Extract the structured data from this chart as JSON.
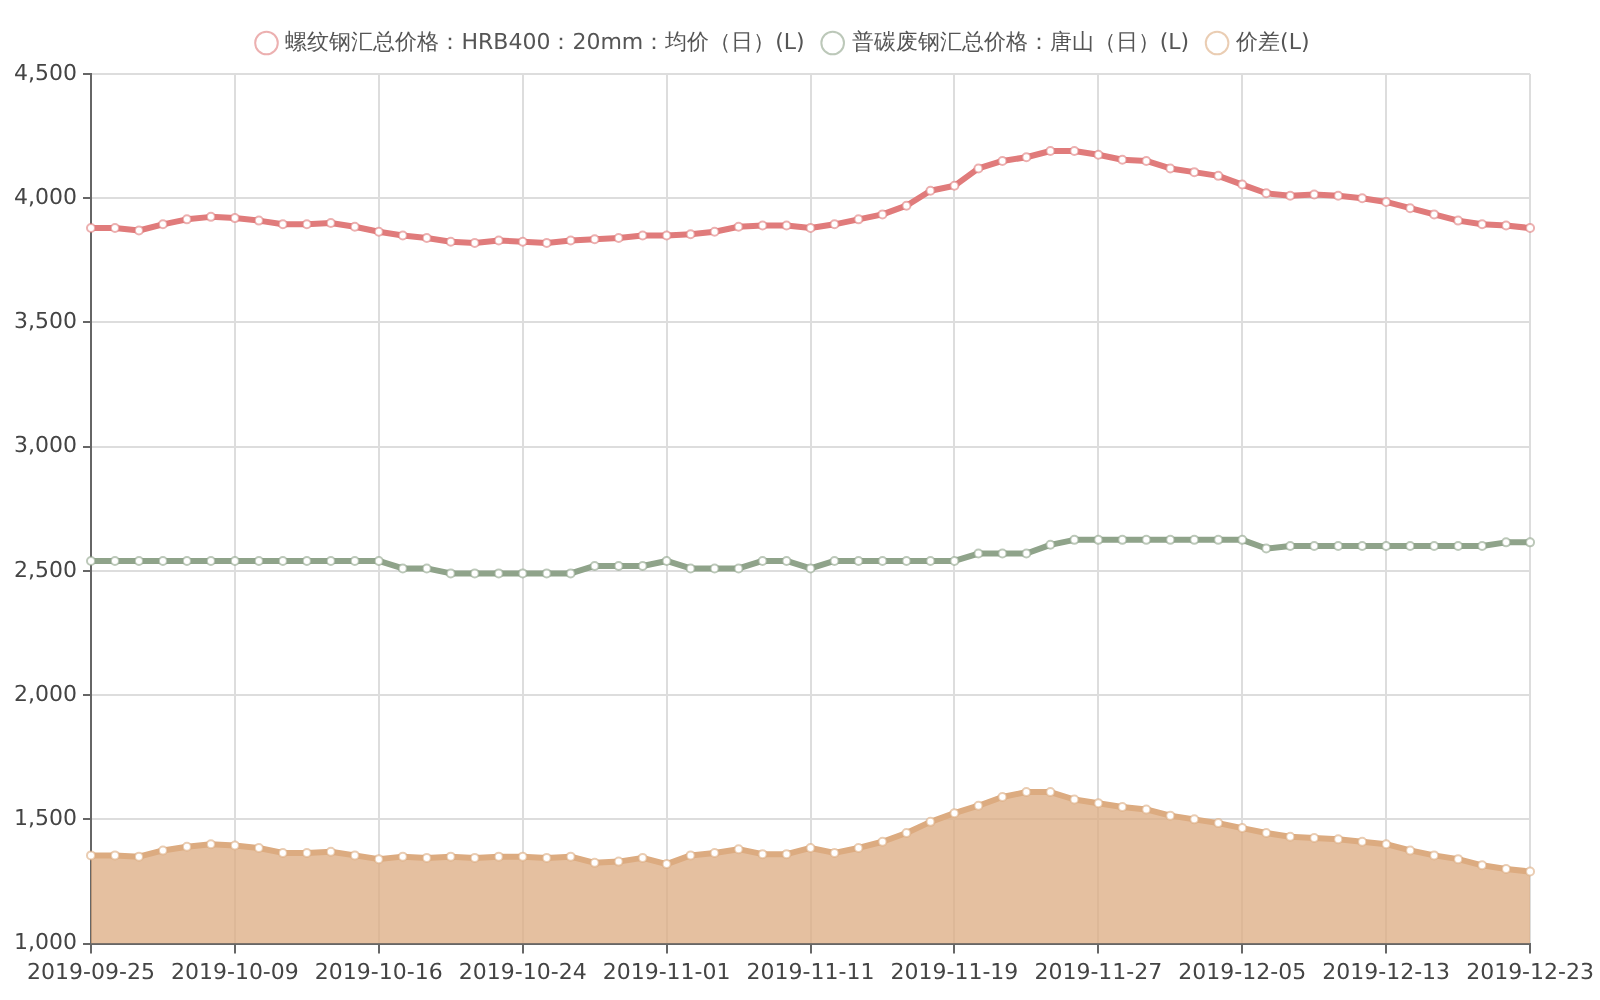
{
  "chart_data": {
    "type": "line",
    "categories": [
      "2019-09-25",
      null,
      null,
      null,
      null,
      null,
      "2019-10-09",
      null,
      null,
      null,
      null,
      null,
      "2019-10-16",
      null,
      null,
      null,
      null,
      null,
      "2019-10-24",
      null,
      null,
      null,
      null,
      null,
      "2019-11-01",
      null,
      null,
      null,
      null,
      null,
      "2019-11-11",
      null,
      null,
      null,
      null,
      null,
      "2019-11-19",
      null,
      null,
      null,
      null,
      null,
      "2019-11-27",
      null,
      null,
      null,
      null,
      null,
      "2019-12-05",
      null,
      null,
      null,
      null,
      null,
      "2019-12-13",
      null,
      null,
      null,
      null,
      null,
      "2019-12-23"
    ],
    "series": [
      {
        "name": "螺纹钢汇总价格：HRB400：20mm：均价（日）(L)",
        "type": "line",
        "color": "#e07b7b",
        "values": [
          3880,
          3880,
          3870,
          3895,
          3915,
          3925,
          3920,
          3910,
          3895,
          3895,
          3900,
          3885,
          3865,
          3850,
          3840,
          3825,
          3820,
          3830,
          3825,
          3820,
          3830,
          3835,
          3840,
          3850,
          3850,
          3855,
          3865,
          3885,
          3890,
          3890,
          3880,
          3895,
          3915,
          3935,
          3970,
          4030,
          4050,
          4120,
          4150,
          4165,
          4190,
          4190,
          4175,
          4155,
          4150,
          4120,
          4105,
          4090,
          4055,
          4020,
          4010,
          4015,
          4010,
          4000,
          3985,
          3960,
          3935,
          3910,
          3895,
          3890,
          3880
        ]
      },
      {
        "name": "普碳废钢汇总价格：唐山（日）(L)",
        "type": "line",
        "color": "#8fa38a",
        "values": [
          2540,
          2540,
          2540,
          2540,
          2540,
          2540,
          2540,
          2540,
          2540,
          2540,
          2540,
          2540,
          2540,
          2510,
          2510,
          2490,
          2490,
          2490,
          2490,
          2490,
          2490,
          2520,
          2520,
          2520,
          2540,
          2510,
          2510,
          2510,
          2540,
          2540,
          2510,
          2540,
          2540,
          2540,
          2540,
          2540,
          2540,
          2570,
          2570,
          2570,
          2605,
          2625,
          2625,
          2625,
          2625,
          2625,
          2625,
          2625,
          2625,
          2590,
          2600,
          2600,
          2600,
          2600,
          2600,
          2600,
          2600,
          2600,
          2600,
          2615,
          2615
        ]
      },
      {
        "name": "价差(L)",
        "type": "area",
        "color": "#dcab80",
        "values": [
          1355,
          1355,
          1350,
          1375,
          1390,
          1400,
          1395,
          1385,
          1365,
          1365,
          1370,
          1355,
          1340,
          1350,
          1345,
          1350,
          1345,
          1350,
          1350,
          1345,
          1350,
          1325,
          1330,
          1345,
          1320,
          1355,
          1365,
          1380,
          1360,
          1360,
          1385,
          1365,
          1385,
          1410,
          1445,
          1490,
          1525,
          1555,
          1590,
          1610,
          1610,
          1580,
          1565,
          1550,
          1540,
          1515,
          1500,
          1485,
          1465,
          1445,
          1430,
          1425,
          1420,
          1410,
          1400,
          1375,
          1355,
          1340,
          1315,
          1300,
          1290
        ]
      }
    ],
    "ylim": [
      1000,
      4500
    ],
    "yticks": [
      {
        "value": 1000,
        "label": "1,000"
      },
      {
        "value": 1500,
        "label": "1,500"
      },
      {
        "value": 2000,
        "label": "2,000"
      },
      {
        "value": 2500,
        "label": "2,500"
      },
      {
        "value": 3000,
        "label": "3,000"
      },
      {
        "value": 3500,
        "label": "3,500"
      },
      {
        "value": 4000,
        "label": "4,000"
      },
      {
        "value": 4500,
        "label": "4,500"
      }
    ],
    "grid": true,
    "legend": "top",
    "marker": "circle"
  }
}
